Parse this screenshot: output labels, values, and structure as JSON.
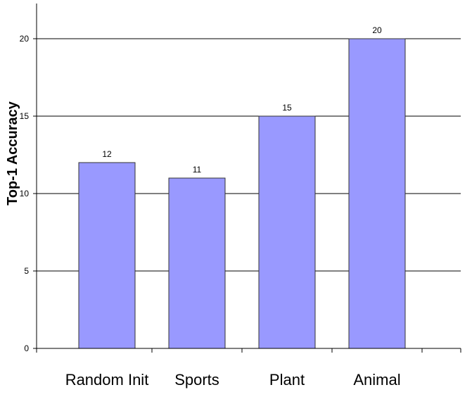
{
  "chart_data": {
    "type": "bar",
    "categories": [
      "Random Init",
      "Sports",
      "Plant",
      "Animal"
    ],
    "values": [
      12,
      11,
      15,
      20
    ],
    "data_labels": [
      "12",
      "11",
      "15",
      "20"
    ],
    "title": "",
    "xlabel": "",
    "ylabel": "Top-1 Accuracy",
    "ylim": [
      0,
      22
    ],
    "yticks": [
      0,
      5,
      10,
      15,
      20
    ],
    "ytick_labels": [
      "0",
      "5",
      "10",
      "15",
      "20"
    ],
    "grid": true,
    "legend": "none",
    "bar_color": "#9999ff",
    "bar_edge_color": "#333333"
  }
}
